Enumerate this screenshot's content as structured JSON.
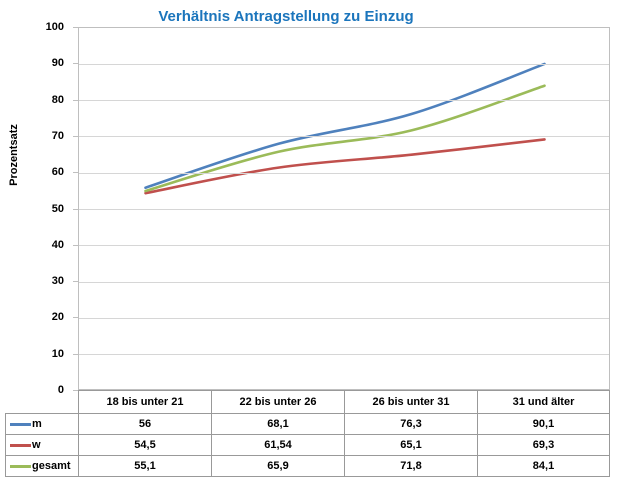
{
  "chart_data": {
    "type": "line",
    "title": "Verhältnis Antragstellung zu Einzug",
    "title_color": "#1b75bc",
    "ylabel": "Prozentsatz",
    "xlabel": "",
    "ylim": [
      0,
      100
    ],
    "yticks": [
      0,
      10,
      20,
      30,
      40,
      50,
      60,
      70,
      80,
      90,
      100
    ],
    "grid": "horizontal",
    "legend_position": "table-left",
    "line_style": "smooth",
    "categories": [
      "18 bis unter 21",
      "22 bis unter 26",
      "26 bis unter 31",
      "31 und älter"
    ],
    "series": [
      {
        "name": "m",
        "color": "#4f81bd",
        "values": [
          56,
          68.1,
          76.3,
          90.1
        ],
        "display": [
          "56",
          "68,1",
          "76,3",
          "90,1"
        ]
      },
      {
        "name": "w",
        "color": "#c0504d",
        "values": [
          54.5,
          61.54,
          65.1,
          69.3
        ],
        "display": [
          "54,5",
          "61,54",
          "65,1",
          "69,3"
        ]
      },
      {
        "name": "gesamt",
        "color": "#9bbb59",
        "values": [
          55.1,
          65.9,
          71.8,
          84.1
        ],
        "display": [
          "55,1",
          "65,9",
          "71,8",
          "84,1"
        ]
      }
    ]
  }
}
